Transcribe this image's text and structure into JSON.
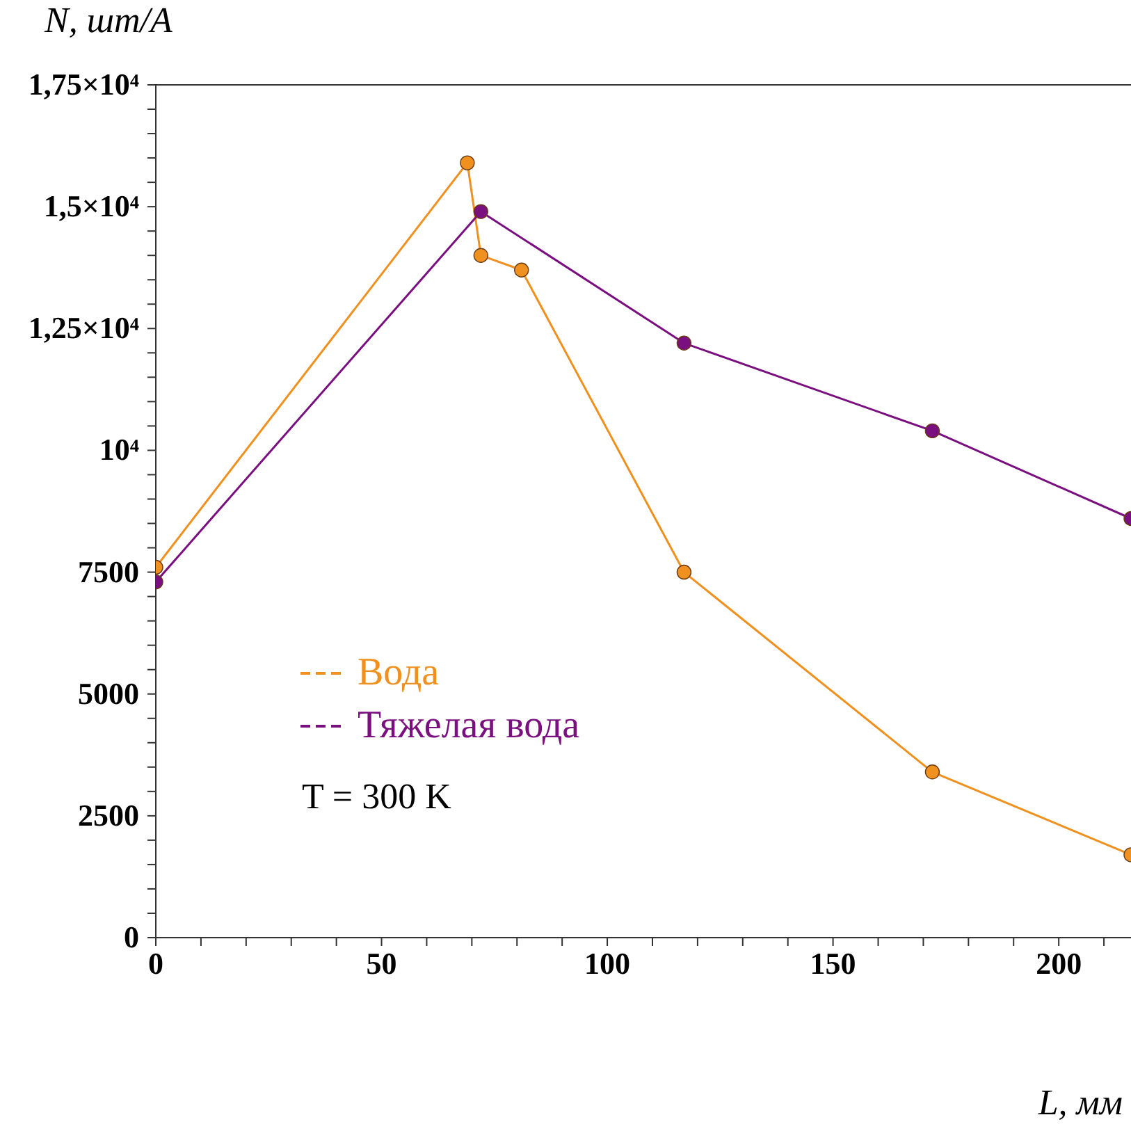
{
  "chart_data": {
    "type": "line",
    "xlabel": "L, мм",
    "ylabel": "N, шт/А",
    "annotations": [
      "T = 300 K"
    ],
    "xlim": [
      0,
      216
    ],
    "ylim": [
      0,
      17500
    ],
    "xticks": [
      0,
      {
        "value": 10,
        "label": null
      },
      {
        "value": 20,
        "label": null
      },
      {
        "value": 30,
        "label": null
      },
      {
        "value": 40,
        "label": null
      },
      50,
      {
        "value": 60,
        "label": null
      },
      {
        "value": 70,
        "label": null
      },
      {
        "value": 80,
        "label": null
      },
      {
        "value": 90,
        "label": null
      },
      100,
      {
        "value": 110,
        "label": null
      },
      {
        "value": 120,
        "label": null
      },
      {
        "value": 130,
        "label": null
      },
      {
        "value": 140,
        "label": null
      },
      150,
      {
        "value": 160,
        "label": null
      },
      {
        "value": 170,
        "label": null
      },
      {
        "value": 180,
        "label": null
      },
      {
        "value": 190,
        "label": null
      },
      200,
      {
        "value": 210,
        "label": null
      }
    ],
    "yticks": [
      0,
      {
        "value": 500,
        "label": null
      },
      {
        "value": 1000,
        "label": null
      },
      {
        "value": 1500,
        "label": null
      },
      {
        "value": 2000,
        "label": null
      },
      2500,
      {
        "value": 3000,
        "label": null
      },
      {
        "value": 3500,
        "label": null
      },
      {
        "value": 4000,
        "label": null
      },
      {
        "value": 4500,
        "label": null
      },
      5000,
      {
        "value": 5500,
        "label": null
      },
      {
        "value": 6000,
        "label": null
      },
      {
        "value": 6500,
        "label": null
      },
      {
        "value": 7000,
        "label": null
      },
      7500,
      {
        "value": 8000,
        "label": null
      },
      {
        "value": 8500,
        "label": null
      },
      {
        "value": 9000,
        "label": null
      },
      {
        "value": 9500,
        "label": null
      },
      {
        "value": 10000,
        "label": "10⁴"
      },
      {
        "value": 10500,
        "label": null
      },
      {
        "value": 11000,
        "label": null
      },
      {
        "value": 11500,
        "label": null
      },
      {
        "value": 12000,
        "label": null
      },
      {
        "value": 12500,
        "label": "1,25×10⁴"
      },
      {
        "value": 13000,
        "label": null
      },
      {
        "value": 13500,
        "label": null
      },
      {
        "value": 14000,
        "label": null
      },
      {
        "value": 14500,
        "label": null
      },
      {
        "value": 15000,
        "label": "1,5×10⁴"
      },
      {
        "value": 15500,
        "label": null
      },
      {
        "value": 16000,
        "label": null
      },
      {
        "value": 16500,
        "label": null
      },
      {
        "value": 17000,
        "label": null
      },
      {
        "value": 17500,
        "label": "1,75×10⁴"
      }
    ],
    "marker": "circle",
    "legend": "left",
    "grid": false,
    "series": [
      {
        "name": "Вода",
        "color": "#f0901e",
        "x": [
          0,
          69,
          72,
          81,
          117,
          172,
          216
        ],
        "values": [
          7600,
          15900,
          14000,
          13700,
          7500,
          3400,
          1700
        ]
      },
      {
        "name": "Тяжелая вода",
        "color": "#7a0f80",
        "x": [
          0,
          72,
          117,
          172,
          216
        ],
        "values": [
          7300,
          14900,
          12200,
          10400,
          8600
        ]
      }
    ]
  }
}
